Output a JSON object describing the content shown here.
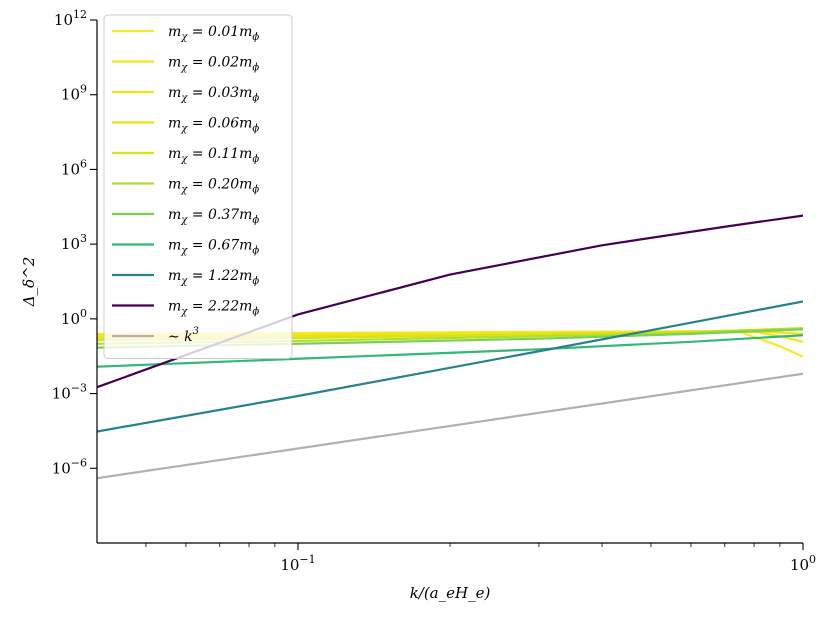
{
  "chart_data": {
    "type": "line",
    "xscale": "log",
    "yscale": "log",
    "xlim": [
      0.04,
      1.0
    ],
    "ylim": [
      1e-09,
      1000000000000.0
    ],
    "xlabel": "k/(a_eH_e)",
    "ylabel": "Δ_δ^2",
    "x_ticks": [
      {
        "value": 0.1,
        "base": "10",
        "exp": "−1"
      },
      {
        "value": 1.0,
        "base": "10",
        "exp": "0"
      }
    ],
    "y_ticks": [
      {
        "value": 1e-06,
        "base": "10",
        "exp": "−6"
      },
      {
        "value": 0.001,
        "base": "10",
        "exp": "−3"
      },
      {
        "value": 1,
        "base": "10",
        "exp": "0"
      },
      {
        "value": 1000.0,
        "base": "10",
        "exp": "3"
      },
      {
        "value": 1000000.0,
        "base": "10",
        "exp": "6"
      },
      {
        "value": 1000000000.0,
        "base": "10",
        "exp": "9"
      },
      {
        "value": 1000000000000.0,
        "base": "10",
        "exp": "12"
      }
    ],
    "legend_position": "top-left",
    "series": [
      {
        "name": "m_χ = 0.01m_ϕ",
        "label_lhs": "m",
        "label_sub": "χ",
        "label_rhs": " = 0.01m",
        "label_sub2": "ϕ",
        "color": "#fde725",
        "x": [
          0.04,
          0.1,
          0.3,
          0.6,
          0.75,
          0.9,
          1.0
        ],
        "y": [
          0.25,
          0.27,
          0.3,
          0.32,
          0.3,
          0.08,
          0.03
        ]
      },
      {
        "name": "m_χ = 0.02m_ϕ",
        "label_lhs": "m",
        "label_sub": "χ",
        "label_rhs": " = 0.02m",
        "label_sub2": "ϕ",
        "color": "#f5e51e",
        "x": [
          0.04,
          0.1,
          0.3,
          0.6,
          0.8,
          0.9,
          1.0
        ],
        "y": [
          0.22,
          0.24,
          0.28,
          0.31,
          0.3,
          0.2,
          0.12
        ]
      },
      {
        "name": "m_χ = 0.03m_ϕ",
        "label_lhs": "m",
        "label_sub": "χ",
        "label_rhs": " = 0.03m",
        "label_sub2": "ϕ",
        "color": "#eee51a",
        "x": [
          0.04,
          0.1,
          0.3,
          0.6,
          0.85,
          1.0
        ],
        "y": [
          0.2,
          0.22,
          0.26,
          0.3,
          0.3,
          0.25
        ]
      },
      {
        "name": "m_χ = 0.06m_ϕ",
        "label_lhs": "m",
        "label_sub": "χ",
        "label_rhs": " = 0.06m",
        "label_sub2": "ϕ",
        "color": "#e6e419",
        "x": [
          0.04,
          0.1,
          0.3,
          0.6,
          1.0
        ],
        "y": [
          0.17,
          0.2,
          0.25,
          0.3,
          0.38
        ]
      },
      {
        "name": "m_χ = 0.11m_ϕ",
        "label_lhs": "m",
        "label_sub": "χ",
        "label_rhs": " = 0.11m",
        "label_sub2": "ϕ",
        "color": "#d8e219",
        "x": [
          0.04,
          0.1,
          0.3,
          0.6,
          1.0
        ],
        "y": [
          0.14,
          0.17,
          0.23,
          0.3,
          0.42
        ]
      },
      {
        "name": "m_χ = 0.20m_ϕ",
        "label_lhs": "m",
        "label_sub": "χ",
        "label_rhs": " = 0.20m",
        "label_sub2": "ϕ",
        "color": "#b5de2b",
        "x": [
          0.04,
          0.1,
          0.3,
          0.6,
          1.0
        ],
        "y": [
          0.1,
          0.13,
          0.2,
          0.28,
          0.42
        ]
      },
      {
        "name": "m_χ = 0.37m_ϕ",
        "label_lhs": "m",
        "label_sub": "χ",
        "label_rhs": " = 0.37m",
        "label_sub2": "ϕ",
        "color": "#7ad151",
        "x": [
          0.04,
          0.1,
          0.3,
          0.6,
          1.0
        ],
        "y": [
          0.07,
          0.1,
          0.16,
          0.25,
          0.38
        ]
      },
      {
        "name": "m_χ = 0.67m_ϕ",
        "label_lhs": "m",
        "label_sub": "χ",
        "label_rhs": " = 0.67m",
        "label_sub2": "ϕ",
        "color": "#35b779",
        "x": [
          0.04,
          0.1,
          0.3,
          0.6,
          1.0
        ],
        "y": [
          0.012,
          0.025,
          0.06,
          0.12,
          0.22
        ]
      },
      {
        "name": "m_χ = 1.22m_ϕ",
        "label_lhs": "m",
        "label_sub": "χ",
        "label_rhs": " = 1.22m",
        "label_sub2": "ϕ",
        "color": "#26828e",
        "x": [
          0.04,
          0.1,
          0.3,
          0.6,
          1.0
        ],
        "y": [
          3e-05,
          0.0008,
          0.05,
          0.7,
          5.0
        ]
      },
      {
        "name": "m_χ = 2.22m_ϕ",
        "label_lhs": "m",
        "label_sub": "χ",
        "label_rhs": " = 2.22m",
        "label_sub2": "ϕ",
        "color": "#440154",
        "x": [
          0.04,
          0.1,
          0.2,
          0.4,
          0.7,
          1.0
        ],
        "y": [
          0.0018,
          1.5,
          60,
          900,
          5000,
          14000
        ]
      },
      {
        "name": "~ k^3",
        "label_lhs": "∼ k",
        "label_sup": "3",
        "color": "#b0b0b0",
        "x": [
          0.04,
          1.0
        ],
        "y": [
          4e-07,
          0.00625
        ]
      }
    ]
  }
}
